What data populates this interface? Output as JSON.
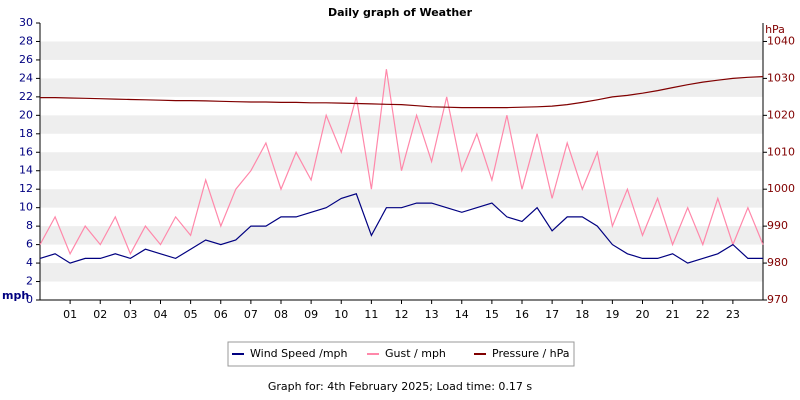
{
  "chart_data": {
    "type": "line",
    "title": "Daily graph of Weather",
    "ylabel": "mph",
    "y2label": "hPa",
    "footer": "Graph for: 4th February 2025; Load time: 0.17 s",
    "x": [
      0,
      0.5,
      1,
      1.5,
      2,
      2.5,
      3,
      3.5,
      4,
      4.5,
      5,
      5.5,
      6,
      6.5,
      7,
      7.5,
      8,
      8.5,
      9,
      9.5,
      10,
      10.5,
      11,
      11.5,
      12,
      12.5,
      13,
      13.5,
      14,
      14.5,
      15,
      15.5,
      16,
      16.5,
      17,
      17.5,
      18,
      18.5,
      19,
      19.5,
      20,
      20.5,
      21,
      21.5,
      22,
      22.5,
      23,
      23.5,
      24
    ],
    "series": [
      {
        "name": "Wind Speed /mph",
        "color": "#000080",
        "values": [
          4.5,
          5,
          4,
          4.5,
          4.5,
          5,
          4.5,
          5.5,
          5,
          4.5,
          5.5,
          6.5,
          6,
          6.5,
          8,
          8,
          9,
          9,
          9.5,
          10,
          11,
          11.5,
          7,
          10,
          10,
          10.5,
          10.5,
          10,
          9.5,
          10,
          10.5,
          9,
          8.5,
          10,
          7.5,
          9,
          9,
          8,
          6,
          5,
          4.5,
          4.5,
          5,
          4,
          4.5,
          5,
          6,
          4.5,
          4.5
        ]
      },
      {
        "name": "Gust / mph",
        "color": "#ff88aa",
        "values": [
          6,
          9,
          5,
          8,
          6,
          9,
          5,
          8,
          6,
          9,
          7,
          13,
          8,
          12,
          14,
          17,
          12,
          16,
          13,
          20,
          16,
          22,
          12,
          25,
          14,
          20,
          15,
          22,
          14,
          18,
          13,
          20,
          12,
          18,
          11,
          17,
          12,
          16,
          8,
          12,
          7,
          11,
          6,
          10,
          6,
          11,
          6,
          10,
          6
        ]
      },
      {
        "name": "Pressure / hPa",
        "color": "#800000",
        "axis": "y2",
        "values": [
          1024.8,
          1024.8,
          1024.7,
          1024.6,
          1024.5,
          1024.4,
          1024.3,
          1024.2,
          1024.1,
          1024,
          1024,
          1023.9,
          1023.8,
          1023.7,
          1023.6,
          1023.6,
          1023.5,
          1023.5,
          1023.4,
          1023.4,
          1023.3,
          1023.2,
          1023.1,
          1023,
          1022.9,
          1022.6,
          1022.3,
          1022.2,
          1022.1,
          1022.1,
          1022.1,
          1022.1,
          1022.2,
          1022.3,
          1022.5,
          1022.9,
          1023.5,
          1024.2,
          1025,
          1025.4,
          1026,
          1026.7,
          1027.5,
          1028.3,
          1029,
          1029.5,
          1030,
          1030.3,
          1030.5
        ]
      }
    ],
    "xlim": [
      0,
      24
    ],
    "xticks": [
      {
        "value": 1,
        "label": "01"
      },
      {
        "value": 2,
        "label": "02"
      },
      {
        "value": 3,
        "label": "03"
      },
      {
        "value": 4,
        "label": "04"
      },
      {
        "value": 5,
        "label": "05"
      },
      {
        "value": 6,
        "label": "06"
      },
      {
        "value": 7,
        "label": "07"
      },
      {
        "value": 8,
        "label": "08"
      },
      {
        "value": 9,
        "label": "09"
      },
      {
        "value": 10,
        "label": "10"
      },
      {
        "value": 11,
        "label": "11"
      },
      {
        "value": 12,
        "label": "12"
      },
      {
        "value": 13,
        "label": "13"
      },
      {
        "value": 14,
        "label": "14"
      },
      {
        "value": 15,
        "label": "15"
      },
      {
        "value": 16,
        "label": "16"
      },
      {
        "value": 17,
        "label": "17"
      },
      {
        "value": 18,
        "label": "18"
      },
      {
        "value": 19,
        "label": "19"
      },
      {
        "value": 20,
        "label": "20"
      },
      {
        "value": 21,
        "label": "21"
      },
      {
        "value": 22,
        "label": "22"
      },
      {
        "value": 23,
        "label": "23"
      }
    ],
    "ylim": [
      0,
      30
    ],
    "yticks": [
      0,
      2,
      4,
      6,
      8,
      10,
      12,
      14,
      16,
      18,
      20,
      22,
      24,
      26,
      28,
      30
    ],
    "y2lim": [
      970,
      1045
    ],
    "y2ticks": [
      970,
      980,
      990,
      1000,
      1010,
      1020,
      1030,
      1040
    ],
    "banded_grid": true,
    "legend": "bottom"
  }
}
